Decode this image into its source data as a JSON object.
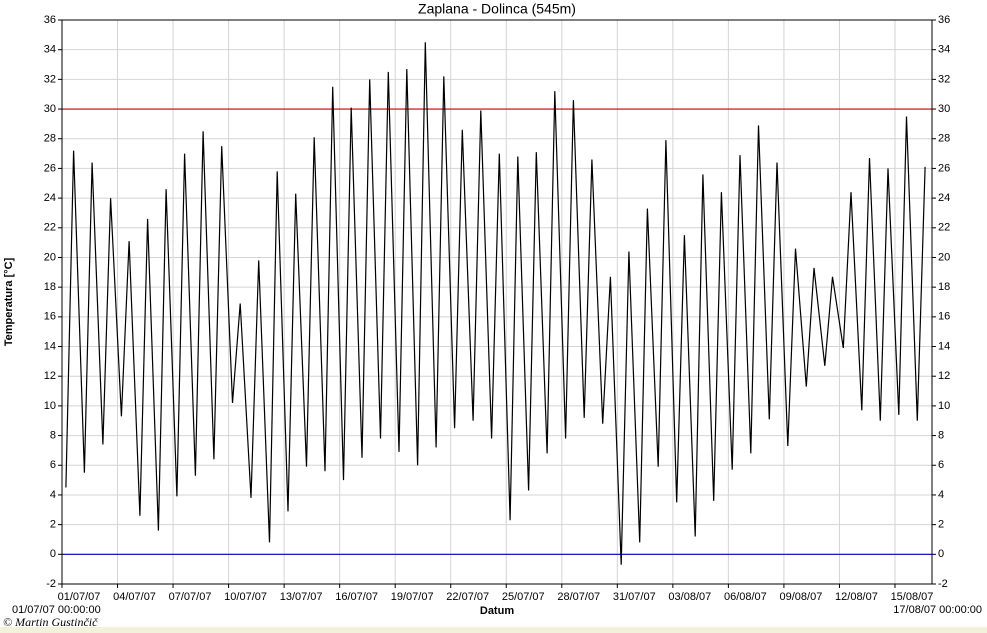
{
  "chart_data": {
    "type": "line",
    "title": "Zaplana - Dolinca (545m)",
    "xlabel": "Datum",
    "ylabel": "Temperatura [°C]",
    "credit": "© Martin Gustinčič",
    "xlim": [
      "01/07/07 00:00:00",
      "17/08/07 00:00:00"
    ],
    "xticks": [
      "01/07/07",
      "04/07/07",
      "07/07/07",
      "10/07/07",
      "13/07/07",
      "16/07/07",
      "19/07/07",
      "22/07/07",
      "25/07/07",
      "28/07/07",
      "31/07/07",
      "03/08/07",
      "06/08/07",
      "09/08/07",
      "12/08/07",
      "15/08/07"
    ],
    "ylim": [
      -2,
      36
    ],
    "yticks": [
      -2,
      0,
      2,
      4,
      6,
      8,
      10,
      12,
      14,
      16,
      18,
      20,
      22,
      24,
      26,
      28,
      30,
      32,
      34,
      36
    ],
    "grid": true,
    "reference_lines": [
      {
        "value": 30,
        "color": "#c00000"
      },
      {
        "value": 0,
        "color": "#0000c0"
      }
    ],
    "x": [
      "01/07/07 05:00:00",
      "01/07/07 15:00:00",
      "02/07/07 05:00:00",
      "02/07/07 15:00:00",
      "03/07/07 05:00:00",
      "03/07/07 15:00:00",
      "04/07/07 05:00:00",
      "04/07/07 15:00:00",
      "05/07/07 05:00:00",
      "05/07/07 15:00:00",
      "06/07/07 05:00:00",
      "06/07/07 15:00:00",
      "07/07/07 05:00:00",
      "07/07/07 15:00:00",
      "08/07/07 05:00:00",
      "08/07/07 15:00:00",
      "09/07/07 05:00:00",
      "09/07/07 15:00:00",
      "10/07/07 05:00:00",
      "10/07/07 15:00:00",
      "11/07/07 05:00:00",
      "11/07/07 15:00:00",
      "12/07/07 05:00:00",
      "12/07/07 15:00:00",
      "13/07/07 05:00:00",
      "13/07/07 15:00:00",
      "14/07/07 05:00:00",
      "14/07/07 15:00:00",
      "15/07/07 05:00:00",
      "15/07/07 15:00:00",
      "16/07/07 05:00:00",
      "16/07/07 15:00:00",
      "17/07/07 05:00:00",
      "17/07/07 15:00:00",
      "18/07/07 05:00:00",
      "18/07/07 15:00:00",
      "19/07/07 05:00:00",
      "19/07/07 15:00:00",
      "20/07/07 05:00:00",
      "20/07/07 15:00:00",
      "21/07/07 05:00:00",
      "21/07/07 15:00:00",
      "22/07/07 05:00:00",
      "22/07/07 15:00:00",
      "23/07/07 05:00:00",
      "23/07/07 15:00:00",
      "24/07/07 05:00:00",
      "24/07/07 15:00:00",
      "25/07/07 05:00:00",
      "25/07/07 15:00:00",
      "26/07/07 05:00:00",
      "26/07/07 15:00:00",
      "27/07/07 05:00:00",
      "27/07/07 15:00:00",
      "28/07/07 05:00:00",
      "28/07/07 15:00:00",
      "29/07/07 05:00:00",
      "29/07/07 15:00:00",
      "30/07/07 05:00:00",
      "30/07/07 15:00:00",
      "31/07/07 05:00:00",
      "31/07/07 15:00:00",
      "01/08/07 05:00:00",
      "01/08/07 15:00:00",
      "02/08/07 05:00:00",
      "02/08/07 15:00:00",
      "03/08/07 05:00:00",
      "03/08/07 15:00:00",
      "04/08/07 05:00:00",
      "04/08/07 15:00:00",
      "05/08/07 05:00:00",
      "05/08/07 15:00:00",
      "06/08/07 05:00:00",
      "06/08/07 15:00:00",
      "07/08/07 05:00:00",
      "07/08/07 15:00:00",
      "08/08/07 05:00:00",
      "08/08/07 15:00:00",
      "09/08/07 05:00:00",
      "09/08/07 15:00:00",
      "10/08/07 05:00:00",
      "10/08/07 15:00:00",
      "11/08/07 05:00:00",
      "11/08/07 15:00:00",
      "12/08/07 05:00:00",
      "12/08/07 15:00:00",
      "13/08/07 05:00:00",
      "13/08/07 15:00:00",
      "14/08/07 05:00:00",
      "14/08/07 15:00:00",
      "15/08/07 05:00:00",
      "15/08/07 15:00:00",
      "16/08/07 05:00:00",
      "16/08/07 15:00:00"
    ],
    "series": [
      {
        "color": "#000000",
        "values": [
          4.5,
          27.2,
          5.5,
          26.4,
          7.4,
          24.0,
          9.3,
          21.1,
          2.6,
          22.6,
          1.6,
          24.6,
          3.9,
          27.0,
          5.3,
          28.5,
          6.4,
          27.5,
          10.2,
          16.9,
          3.8,
          19.8,
          0.8,
          25.8,
          2.9,
          24.3,
          5.9,
          28.1,
          5.6,
          31.5,
          5.0,
          30.1,
          6.5,
          32.0,
          7.8,
          32.5,
          6.9,
          32.7,
          6.0,
          34.5,
          7.2,
          32.2,
          8.5,
          28.6,
          9.0,
          29.9,
          7.8,
          27.0,
          2.3,
          26.8,
          4.3,
          27.1,
          6.8,
          31.2,
          7.8,
          30.6,
          9.2,
          26.6,
          8.8,
          18.7,
          -0.7,
          20.4,
          0.8,
          23.3,
          5.9,
          27.9,
          3.5,
          21.5,
          1.2,
          25.6,
          3.6,
          24.4,
          5.7,
          26.9,
          6.8,
          28.9,
          9.1,
          26.4,
          7.3,
          20.6,
          11.3,
          19.3,
          12.7,
          18.7,
          13.9,
          24.4,
          9.7,
          26.7,
          9.0,
          26.0,
          9.4,
          29.5,
          9.0,
          26.1
        ]
      }
    ]
  }
}
